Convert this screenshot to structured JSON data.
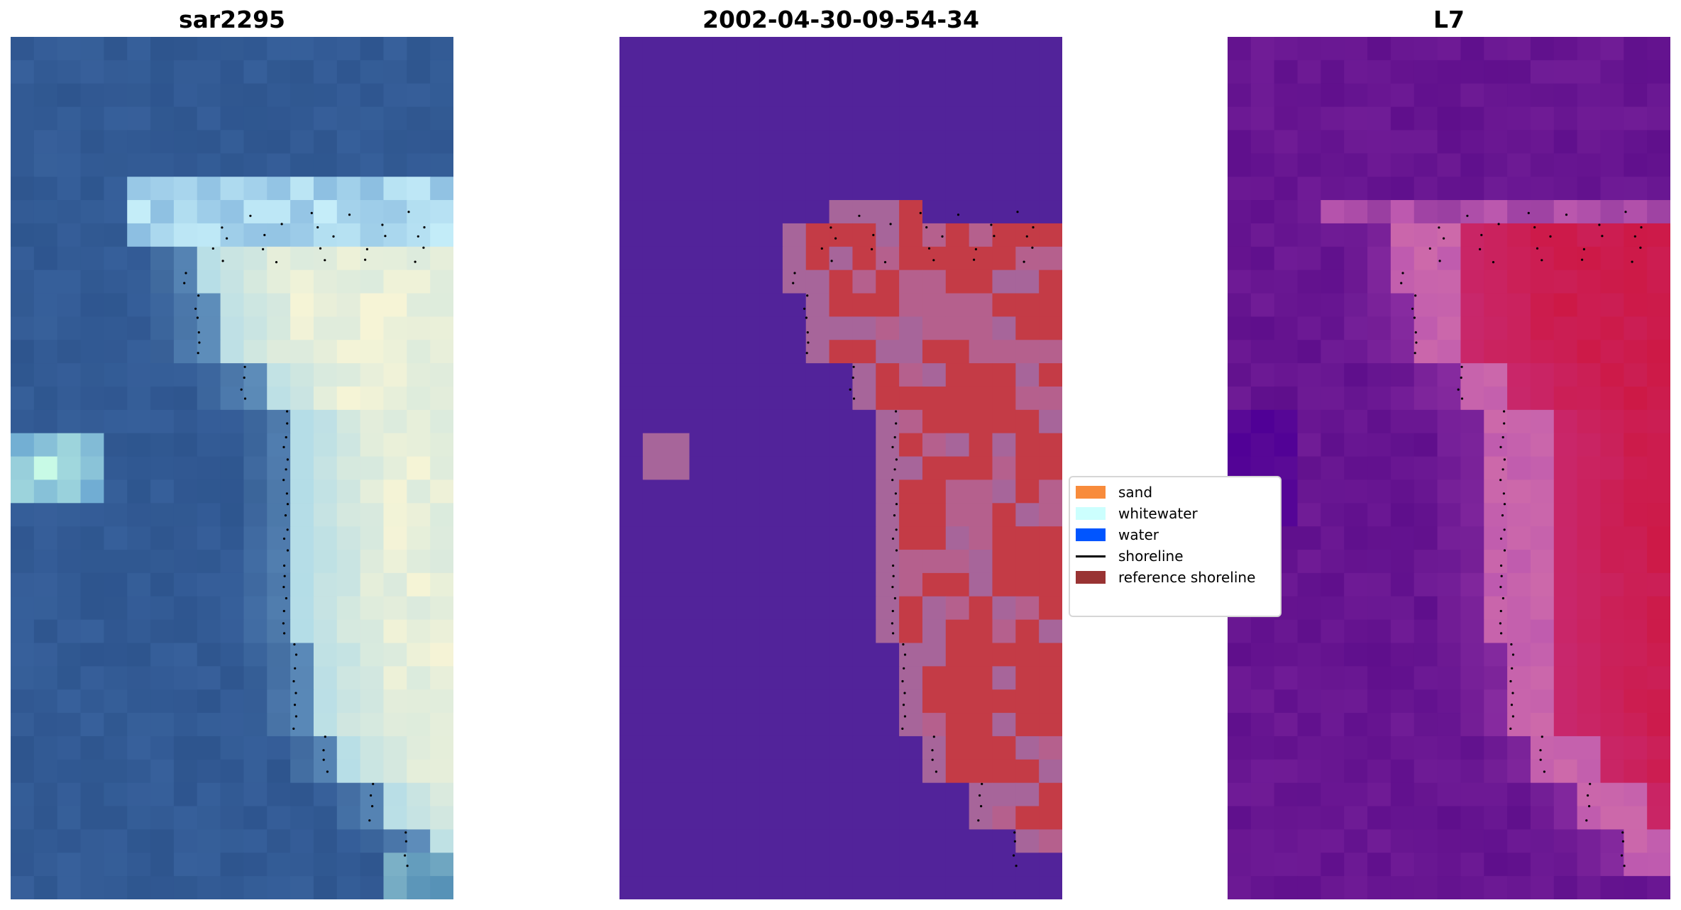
{
  "panels": [
    {
      "title": "sar2295"
    },
    {
      "title": "2002-04-30-09-54-34"
    },
    {
      "title": "L7"
    }
  ],
  "legend": {
    "items": [
      {
        "label": "sand",
        "color": "#f88b3b",
        "kind": "patch"
      },
      {
        "label": "whitewater",
        "color": "#ccfffe",
        "kind": "patch"
      },
      {
        "label": "water",
        "color": "#0055ff",
        "kind": "patch"
      },
      {
        "label": "shoreline",
        "color": "#000000",
        "kind": "line"
      },
      {
        "label": "reference shoreline",
        "color": "#993333",
        "kind": "patch"
      }
    ]
  },
  "colors": {
    "water_class": "#52239a",
    "reference_buffer": "#c43b46",
    "buffer_edge": "#a7659a",
    "shoreline_points": "#000000"
  }
}
